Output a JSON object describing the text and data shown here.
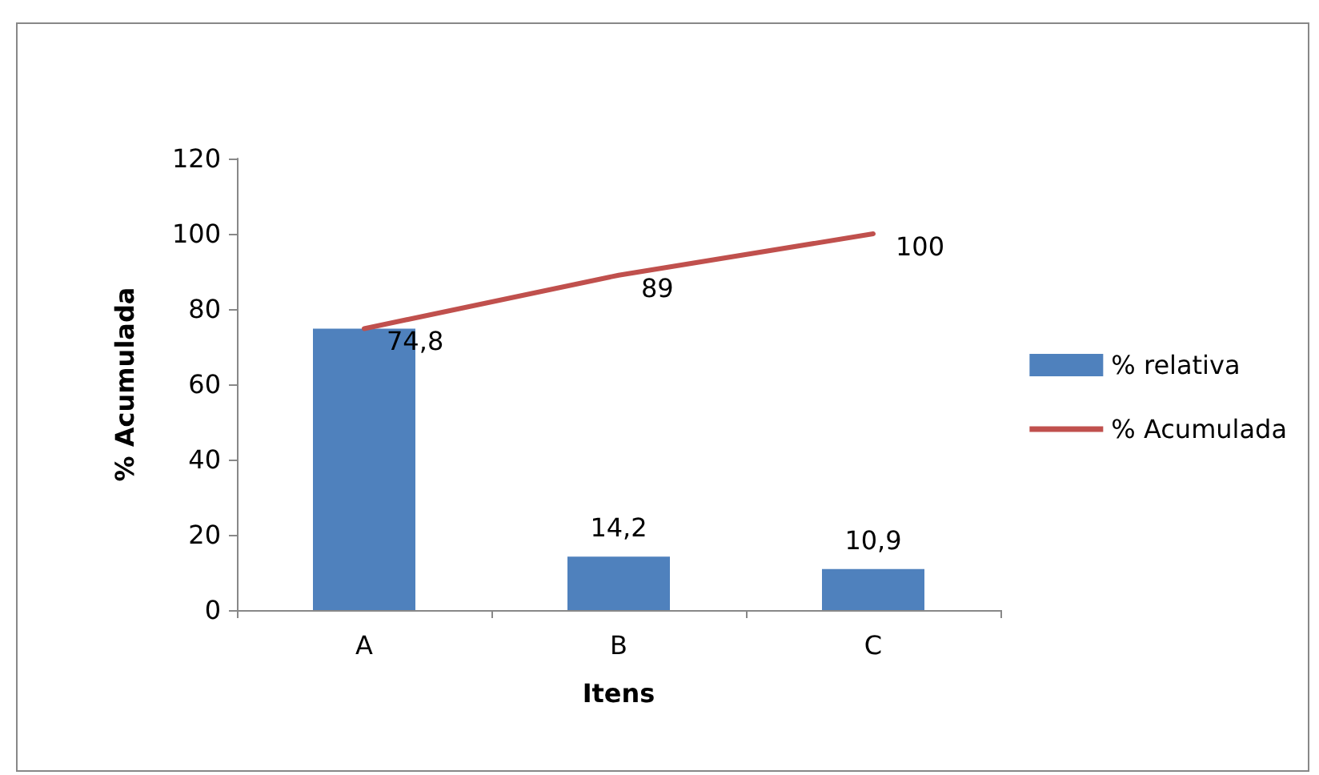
{
  "chart_data": {
    "type": "bar",
    "xlabel": "Itens",
    "ylabel": "% Acumulada",
    "categories": [
      "A",
      "B",
      "C"
    ],
    "series": [
      {
        "name": "% relativa",
        "color": "#4f81bd",
        "values": [
          74.8,
          14.2,
          10.9
        ],
        "value_labels": [
          null,
          "14,2",
          "10,9"
        ]
      },
      {
        "name": "% Acumulada",
        "type": "line",
        "color": "#c0504d",
        "values": [
          74.8,
          89,
          100
        ],
        "value_labels": [
          "74,8",
          "89",
          "100"
        ]
      }
    ],
    "ylim": [
      0,
      120
    ],
    "yticks": [
      0,
      20,
      40,
      60,
      80,
      100,
      120
    ],
    "grid": false,
    "legend": "right",
    "marker": "none"
  }
}
